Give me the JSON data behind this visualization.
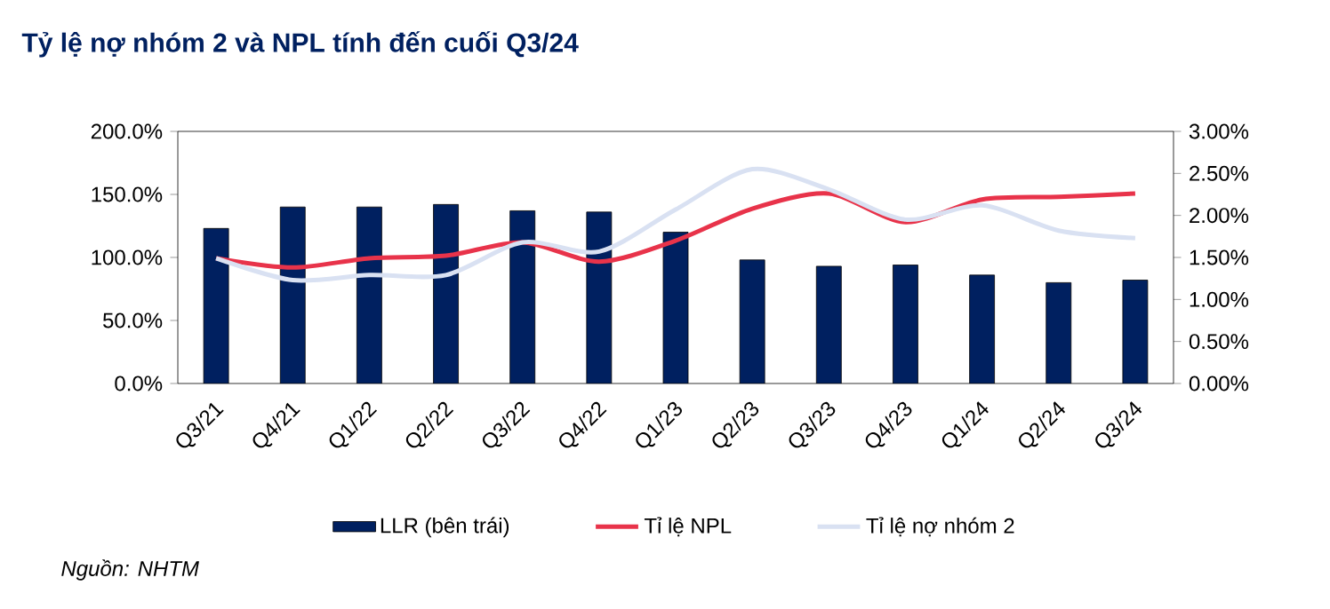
{
  "chart_data": {
    "type": "bar",
    "title": "Tỷ lệ nợ nhóm 2 và NPL tính đến cuối Q3/24",
    "categories": [
      "Q3/21",
      "Q4/21",
      "Q1/22",
      "Q2/22",
      "Q3/22",
      "Q4/22",
      "Q1/23",
      "Q2/23",
      "Q3/23",
      "Q4/23",
      "Q1/24",
      "Q2/24",
      "Q3/24"
    ],
    "series": [
      {
        "name": "LLR (bên trái)",
        "color": "#002060",
        "values": [
          123,
          140,
          140,
          142,
          137,
          136,
          120,
          98,
          93,
          94,
          86,
          80,
          82
        ]
      },
      {
        "name": "Tỉ lệ NPL",
        "type": "line",
        "axis": "y2",
        "color": "#e8334a",
        "values": [
          1.49,
          1.38,
          1.49,
          1.52,
          1.68,
          1.45,
          1.7,
          2.08,
          2.26,
          1.92,
          2.19,
          2.22,
          2.26
        ]
      },
      {
        "name": "Tỉ lệ nợ nhóm 2",
        "type": "line",
        "axis": "y2",
        "color": "#d9e1f2",
        "values": [
          1.49,
          1.23,
          1.29,
          1.29,
          1.68,
          1.57,
          2.07,
          2.55,
          2.31,
          1.95,
          2.12,
          1.82,
          1.73
        ]
      }
    ],
    "ylim": [
      0,
      200
    ],
    "yticks": [
      {
        "value": 0,
        "label": "0.0%"
      },
      {
        "value": 50,
        "label": "50.0%"
      },
      {
        "value": 100,
        "label": "100.0%"
      },
      {
        "value": 150,
        "label": "150.0%"
      },
      {
        "value": 200,
        "label": "200.0%"
      }
    ],
    "y2lim": [
      0,
      3
    ],
    "y2ticks": [
      {
        "value": 0,
        "label": "0.00%"
      },
      {
        "value": 0.5,
        "label": "0.50%"
      },
      {
        "value": 1,
        "label": "1.00%"
      },
      {
        "value": 1.5,
        "label": "1.50%"
      },
      {
        "value": 2,
        "label": "2.00%"
      },
      {
        "value": 2.5,
        "label": "2.50%"
      },
      {
        "value": 3,
        "label": "3.00%"
      }
    ],
    "legend": "bottom",
    "grid": false,
    "annotations": [
      "Nguồn: NHTM"
    ]
  }
}
